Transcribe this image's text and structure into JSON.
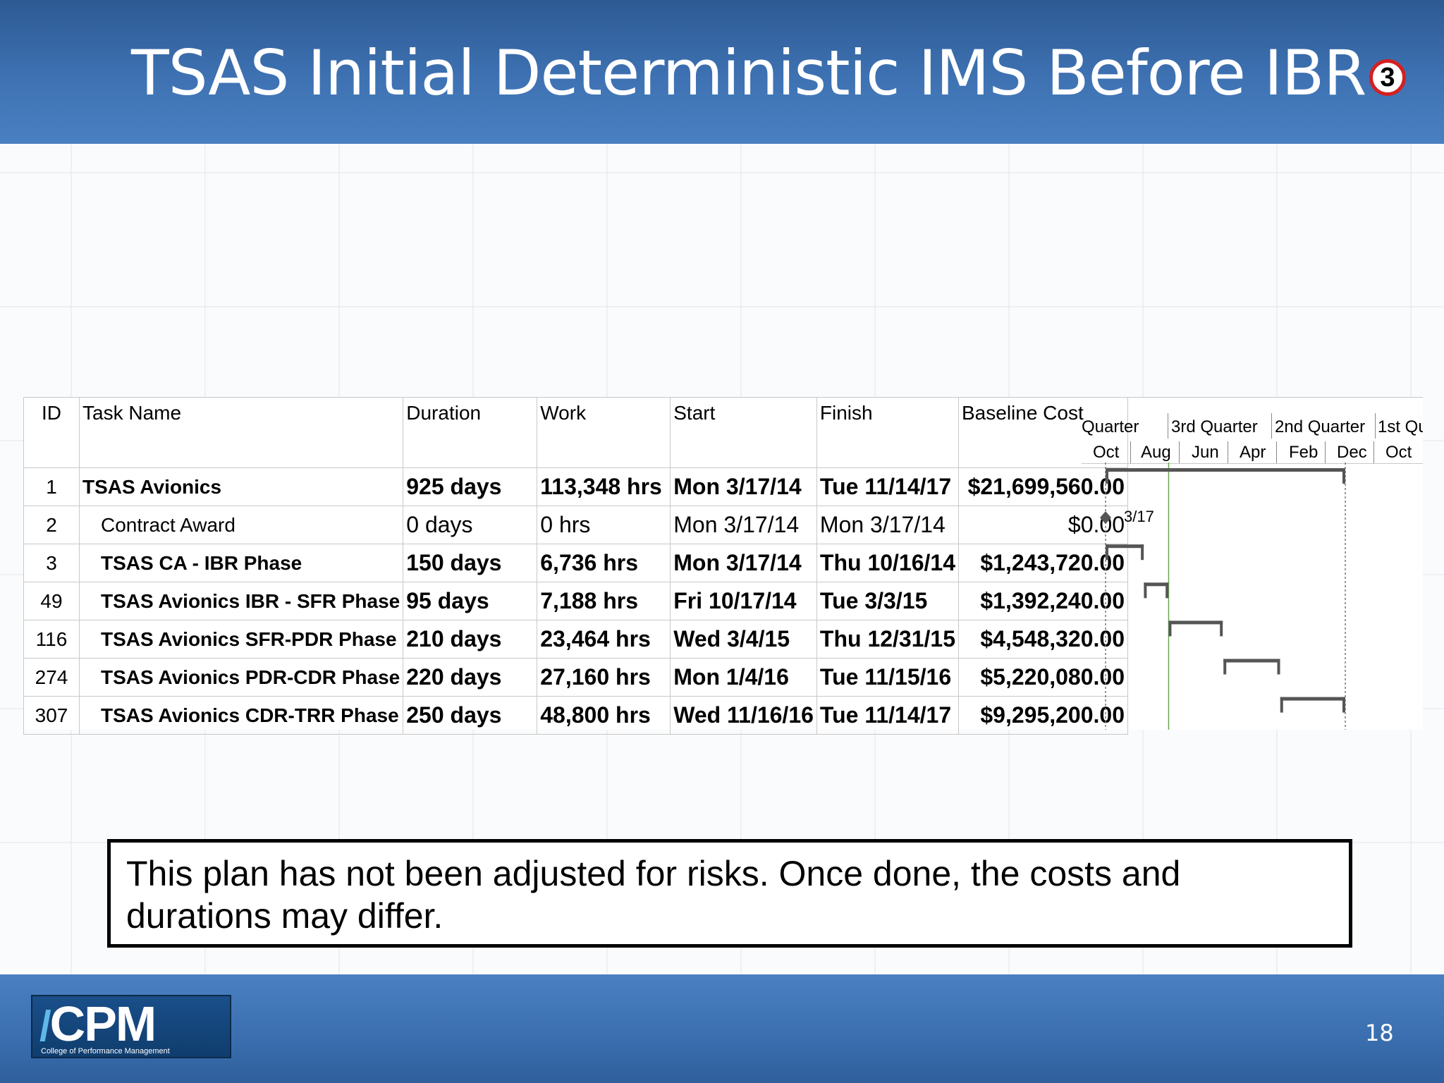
{
  "slide": {
    "title": "TSAS Initial Deterministic IMS Before IBR",
    "badge_number": "3",
    "note": "This plan has not been adjusted for risks.  Once done, the costs and durations may differ.",
    "page_number": "18",
    "logo": {
      "mark": "CPM",
      "subtitle": "College of Performance Management"
    }
  },
  "gantt": {
    "columns": [
      "ID",
      "Task Name",
      "Duration",
      "Work",
      "Start",
      "Finish",
      "Baseline Cost"
    ],
    "timescale": {
      "quarters": [
        "Quarter",
        "3rd Quarter",
        "2nd Quarter",
        "1st Qua"
      ],
      "months": [
        "Oct",
        "Aug",
        "Jun",
        "Apr",
        "Feb",
        "Dec",
        "Oct"
      ]
    },
    "milestone_label": "3/17",
    "rows": [
      {
        "id": "1",
        "name": "TSAS Avionics",
        "duration": "925 days",
        "work": "113,348 hrs",
        "start": "Mon 3/17/14",
        "finish": "Tue 11/14/17",
        "cost": "$21,699,560.00",
        "summary": true,
        "indent": false,
        "bar": {
          "start": "3/17/14",
          "finish": "11/14/17",
          "type": "summary"
        }
      },
      {
        "id": "2",
        "name": "Contract Award",
        "duration": "0 days",
        "work": "0 hrs",
        "start": "Mon 3/17/14",
        "finish": "Mon 3/17/14",
        "cost": "$0.00",
        "summary": false,
        "indent": true,
        "bar": {
          "start": "3/17/14",
          "finish": "3/17/14",
          "type": "milestone"
        }
      },
      {
        "id": "3",
        "name": "TSAS CA - IBR Phase",
        "duration": "150 days",
        "work": "6,736 hrs",
        "start": "Mon 3/17/14",
        "finish": "Thu 10/16/14",
        "cost": "$1,243,720.00",
        "summary": true,
        "indent": true,
        "bar": {
          "start": "3/17/14",
          "finish": "10/16/14",
          "type": "summary"
        }
      },
      {
        "id": "49",
        "name": "TSAS Avionics IBR - SFR Phase",
        "duration": "95 days",
        "work": "7,188 hrs",
        "start": "Fri 10/17/14",
        "finish": "Tue 3/3/15",
        "cost": "$1,392,240.00",
        "summary": true,
        "indent": true,
        "bar": {
          "start": "10/17/14",
          "finish": "3/3/15",
          "type": "summary"
        }
      },
      {
        "id": "116",
        "name": "TSAS Avionics SFR-PDR Phase",
        "duration": "210 days",
        "work": "23,464 hrs",
        "start": "Wed 3/4/15",
        "finish": "Thu 12/31/15",
        "cost": "$4,548,320.00",
        "summary": true,
        "indent": true,
        "bar": {
          "start": "3/4/15",
          "finish": "12/31/15",
          "type": "summary"
        }
      },
      {
        "id": "274",
        "name": "TSAS Avionics PDR-CDR Phase",
        "duration": "220 days",
        "work": "27,160 hrs",
        "start": "Mon 1/4/16",
        "finish": "Tue 11/15/16",
        "cost": "$5,220,080.00",
        "summary": true,
        "indent": true,
        "bar": {
          "start": "1/4/16",
          "finish": "11/15/16",
          "type": "summary"
        }
      },
      {
        "id": "307",
        "name": "TSAS Avionics CDR-TRR Phase",
        "duration": "250 days",
        "work": "48,800 hrs",
        "start": "Wed 11/16/16",
        "finish": "Tue 11/14/17",
        "cost": "$9,295,200.00",
        "summary": true,
        "indent": true,
        "bar": {
          "start": "11/16/16",
          "finish": "11/14/17",
          "type": "summary"
        }
      }
    ]
  }
}
